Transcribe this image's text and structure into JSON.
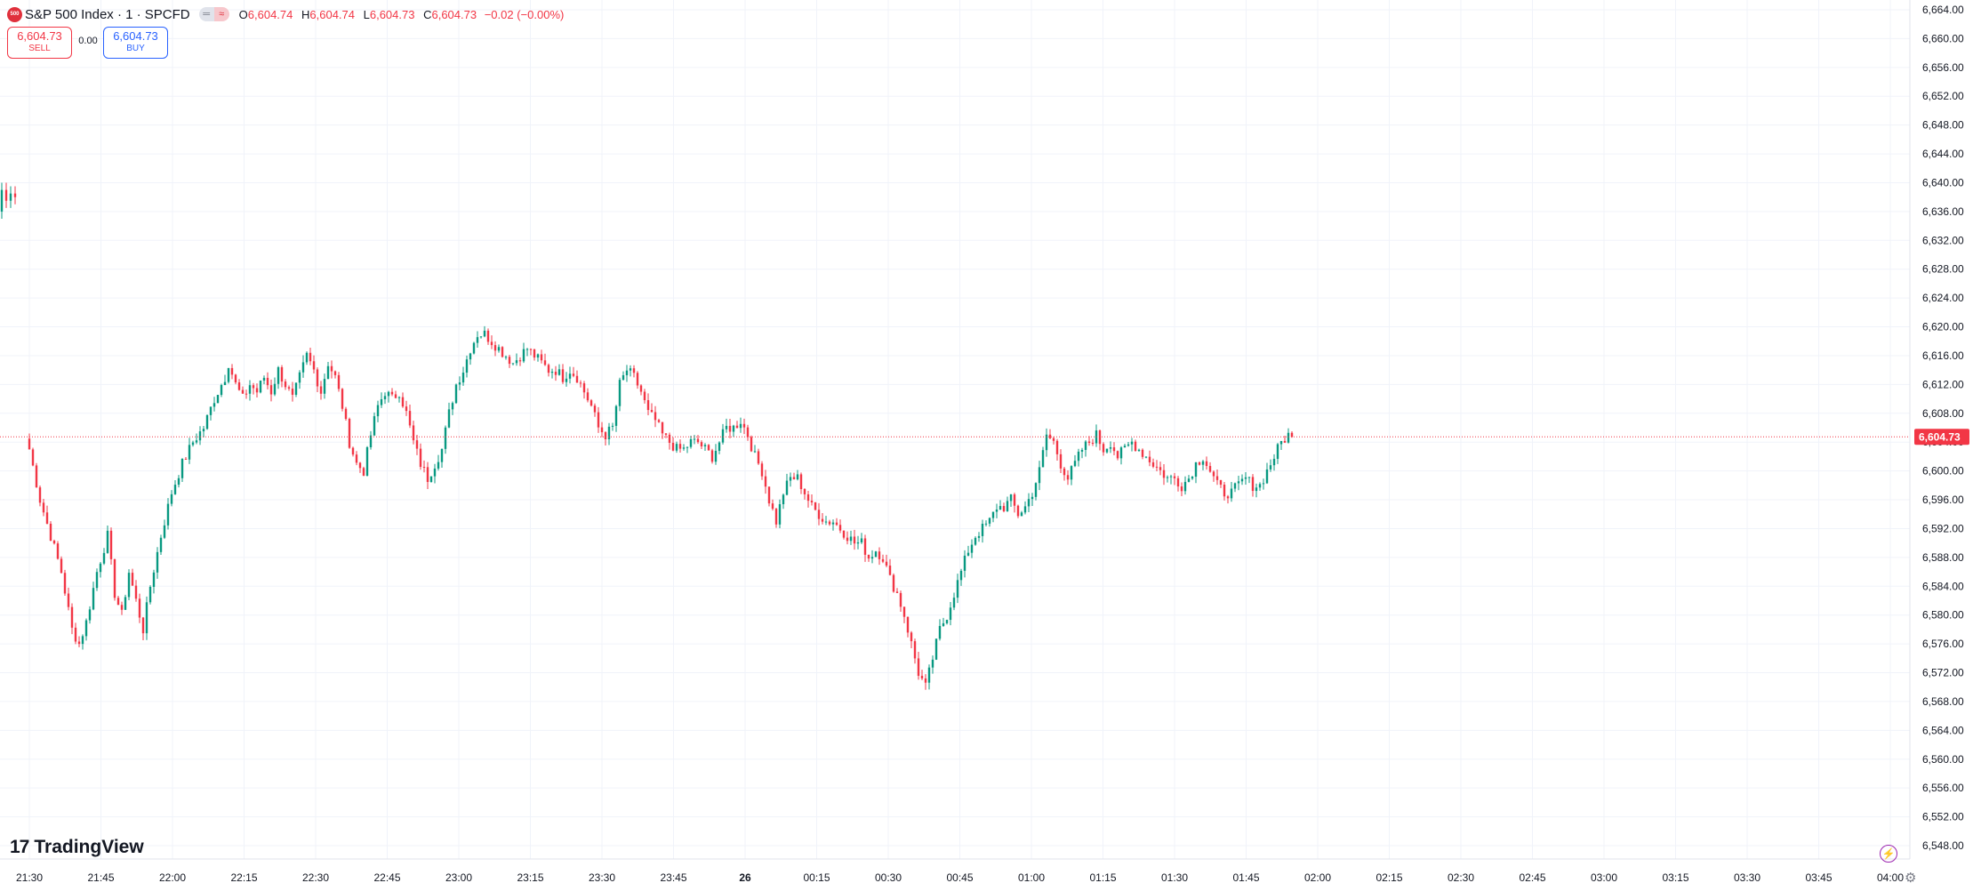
{
  "header": {
    "symbol_logo_text": "500",
    "symbol_title": "S&P 500 Index · 1 · SPCFD",
    "open_label": "O",
    "open_value": "6,604.74",
    "high_label": "H",
    "high_value": "6,604.74",
    "low_label": "L",
    "low_value": "6,604.73",
    "close_label": "C",
    "close_value": "6,604.73",
    "change_value": "−0.02 (−0.00%)"
  },
  "trade": {
    "sell_price": "6,604.73",
    "sell_label": "SELL",
    "spread": "0.00",
    "buy_price": "6,604.73",
    "buy_label": "BUY"
  },
  "brand": {
    "logo_glyph": "17",
    "name": "TradingView"
  },
  "colors": {
    "up": "#089981",
    "down": "#f23645",
    "grid": "#f0f3fa",
    "axis_text": "#131722",
    "last_price_line": "#f23645"
  },
  "icons": {
    "lightning": "lightning-icon",
    "settings": "gear-icon"
  },
  "chart_data": {
    "type": "candlestick",
    "title": "S&P 500 Index · 1 · SPCFD",
    "grid": true,
    "y_axis_position": "right",
    "ylim": [
      6546,
      6665
    ],
    "y_ticks": [
      "6,664.00",
      "6,660.00",
      "6,656.00",
      "6,652.00",
      "6,648.00",
      "6,644.00",
      "6,640.00",
      "6,636.00",
      "6,632.00",
      "6,628.00",
      "6,624.00",
      "6,620.00",
      "6,616.00",
      "6,612.00",
      "6,608.00",
      "6,604.00",
      "6,600.00",
      "6,596.00",
      "6,592.00",
      "6,588.00",
      "6,584.00",
      "6,580.00",
      "6,576.00",
      "6,572.00",
      "6,568.00",
      "6,564.00",
      "6,560.00",
      "6,556.00",
      "6,552.00",
      "6,548.00"
    ],
    "x_ticks": [
      "21:30",
      "21:45",
      "22:00",
      "22:15",
      "22:30",
      "22:45",
      "23:00",
      "23:15",
      "23:30",
      "23:45",
      "26",
      "00:15",
      "00:30",
      "00:45",
      "01:00",
      "01:15",
      "01:30",
      "01:45",
      "02:00",
      "02:15",
      "02:30",
      "02:45",
      "03:00",
      "03:15",
      "03:30",
      "03:45",
      "04:00"
    ],
    "last_price": 6604.73,
    "last_price_label": "6,604.73",
    "early_segment": [
      [
        6636,
        6639
      ],
      [
        6639,
        6637.5
      ],
      [
        6637.5,
        6638.5
      ],
      [
        6638.5,
        6638
      ]
    ],
    "price_path": [
      [
        0,
        6603
      ],
      [
        3,
        6596
      ],
      [
        6,
        6591
      ],
      [
        9,
        6586
      ],
      [
        12,
        6578
      ],
      [
        14,
        6576
      ],
      [
        16,
        6579
      ],
      [
        19,
        6586
      ],
      [
        22,
        6591
      ],
      [
        24,
        6583
      ],
      [
        26,
        6580
      ],
      [
        28,
        6586
      ],
      [
        30,
        6582
      ],
      [
        32,
        6578
      ],
      [
        34,
        6584
      ],
      [
        37,
        6591
      ],
      [
        40,
        6597
      ],
      [
        43,
        6601
      ],
      [
        46,
        6604
      ],
      [
        49,
        6606
      ],
      [
        52,
        6610
      ],
      [
        55,
        6613
      ],
      [
        56,
        6615
      ],
      [
        58,
        6612
      ],
      [
        60,
        6610
      ],
      [
        62,
        6612
      ],
      [
        64,
        6611
      ],
      [
        66,
        6613
      ],
      [
        68,
        6611
      ],
      [
        70,
        6614
      ],
      [
        72,
        6612
      ],
      [
        74,
        6610
      ],
      [
        76,
        6613
      ],
      [
        78,
        6616
      ],
      [
        80,
        6614
      ],
      [
        82,
        6611
      ],
      [
        84,
        6615
      ],
      [
        86,
        6613
      ],
      [
        88,
        6609
      ],
      [
        90,
        6604
      ],
      [
        92,
        6601
      ],
      [
        94,
        6600
      ],
      [
        96,
        6605
      ],
      [
        98,
        6609
      ],
      [
        100,
        6611
      ],
      [
        102,
        6610
      ],
      [
        104,
        6611
      ],
      [
        106,
        6608
      ],
      [
        108,
        6604
      ],
      [
        110,
        6601
      ],
      [
        112,
        6599
      ],
      [
        114,
        6601
      ],
      [
        116,
        6603
      ],
      [
        118,
        6608
      ],
      [
        120,
        6612
      ],
      [
        122,
        6614
      ],
      [
        124,
        6617
      ],
      [
        126,
        6619
      ],
      [
        128,
        6619
      ],
      [
        130,
        6618
      ],
      [
        132,
        6617
      ],
      [
        134,
        6616
      ],
      [
        136,
        6615
      ],
      [
        138,
        6616
      ],
      [
        140,
        6617
      ],
      [
        142,
        6616
      ],
      [
        144,
        6615
      ],
      [
        146,
        6614
      ],
      [
        148,
        6614
      ],
      [
        150,
        6613
      ],
      [
        152,
        6614
      ],
      [
        154,
        6613
      ],
      [
        156,
        6611
      ],
      [
        158,
        6609
      ],
      [
        160,
        6606
      ],
      [
        162,
        6605
      ],
      [
        164,
        6606
      ],
      [
        166,
        6612
      ],
      [
        168,
        6614
      ],
      [
        170,
        6613
      ],
      [
        172,
        6611
      ],
      [
        174,
        6608
      ],
      [
        176,
        6607
      ],
      [
        178,
        6605
      ],
      [
        180,
        6604
      ],
      [
        182,
        6603
      ],
      [
        184,
        6603
      ],
      [
        186,
        6604
      ],
      [
        188,
        6604
      ],
      [
        190,
        6603
      ],
      [
        192,
        6602
      ],
      [
        194,
        6604
      ],
      [
        196,
        6606
      ],
      [
        198,
        6606
      ],
      [
        200,
        6607
      ],
      [
        202,
        6605
      ],
      [
        204,
        6602
      ],
      [
        206,
        6600
      ],
      [
        208,
        6596
      ],
      [
        210,
        6593
      ],
      [
        212,
        6597
      ],
      [
        214,
        6599
      ],
      [
        216,
        6599
      ],
      [
        218,
        6597
      ],
      [
        220,
        6595
      ],
      [
        222,
        6594
      ],
      [
        224,
        6593
      ],
      [
        226,
        6593
      ],
      [
        228,
        6592
      ],
      [
        230,
        6591
      ],
      [
        232,
        6590
      ],
      [
        234,
        6590
      ],
      [
        236,
        6588
      ],
      [
        238,
        6589
      ],
      [
        240,
        6588
      ],
      [
        242,
        6585
      ],
      [
        244,
        6583
      ],
      [
        246,
        6580
      ],
      [
        248,
        6576
      ],
      [
        250,
        6572
      ],
      [
        252,
        6570
      ],
      [
        254,
        6574
      ],
      [
        256,
        6578
      ],
      [
        258,
        6580
      ],
      [
        260,
        6583
      ],
      [
        262,
        6586
      ],
      [
        264,
        6589
      ],
      [
        266,
        6591
      ],
      [
        268,
        6592
      ],
      [
        270,
        6593
      ],
      [
        272,
        6595
      ],
      [
        274,
        6595
      ],
      [
        276,
        6596
      ],
      [
        278,
        6594
      ],
      [
        280,
        6595
      ],
      [
        282,
        6597
      ],
      [
        284,
        6600
      ],
      [
        286,
        6605
      ],
      [
        288,
        6604
      ],
      [
        290,
        6601
      ],
      [
        292,
        6599
      ],
      [
        294,
        6601
      ],
      [
        296,
        6603
      ],
      [
        298,
        6604
      ],
      [
        300,
        6605
      ],
      [
        302,
        6603
      ],
      [
        304,
        6604
      ],
      [
        306,
        6602
      ],
      [
        308,
        6603
      ],
      [
        310,
        6604
      ],
      [
        312,
        6603
      ],
      [
        314,
        6602
      ],
      [
        316,
        6601
      ],
      [
        318,
        6600
      ],
      [
        320,
        6599
      ],
      [
        322,
        6599
      ],
      [
        324,
        6598
      ],
      [
        326,
        6599
      ],
      [
        328,
        6601
      ],
      [
        330,
        6602
      ],
      [
        332,
        6600
      ],
      [
        334,
        6598
      ],
      [
        336,
        6597
      ],
      [
        338,
        6597
      ],
      [
        340,
        6598
      ],
      [
        342,
        6599
      ],
      [
        344,
        6598
      ],
      [
        346,
        6598
      ],
      [
        348,
        6600
      ],
      [
        350,
        6602
      ],
      [
        352,
        6604
      ],
      [
        354,
        6605
      ],
      [
        355,
        6604.73
      ]
    ]
  }
}
